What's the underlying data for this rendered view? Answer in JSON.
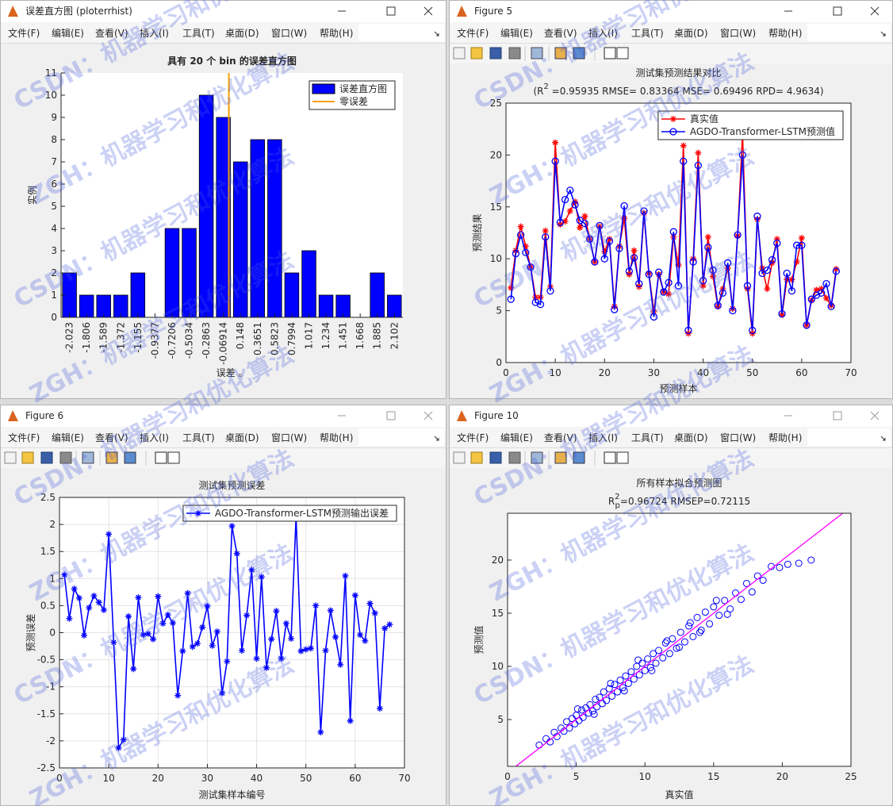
{
  "windows": [
    {
      "title": "误差直方图 (ploterrhist)"
    },
    {
      "title": "Figure 5"
    },
    {
      "title": "Figure 6"
    },
    {
      "title": "Figure 10"
    }
  ],
  "menu": [
    "文件(F)",
    "编辑(E)",
    "查看(V)",
    "插入(I)",
    "工具(T)",
    "桌面(D)",
    "窗口(W)",
    "帮助(H)"
  ],
  "watermarks": [
    "ZGH：机器学习和优化算法",
    "CSDN：机器学习和优化算法"
  ],
  "chart_data": [
    {
      "type": "bar",
      "title": "具有 20 个 bin 的误差直方图",
      "xlabel": "误差 。",
      "ylabel": "实例",
      "legend_name": "误差直方图",
      "color": "#0000ff",
      "box": false,
      "legend": "northeast",
      "xtick_rotation": 90,
      "x": [
        -2.023,
        -1.806,
        -1.589,
        -1.372,
        -1.155,
        -0.9377,
        -0.7206,
        -0.5034,
        -0.2863,
        -0.06914,
        0.148,
        0.3651,
        0.5823,
        0.7994,
        1.017,
        1.234,
        1.451,
        1.668,
        1.885,
        2.102
      ],
      "values": [
        2,
        1,
        1,
        1,
        2,
        0,
        4,
        4,
        10,
        9,
        7,
        8,
        8,
        2,
        3,
        1,
        1,
        0,
        2,
        1
      ],
      "reference_line": {
        "name": "零误差",
        "x": 0,
        "color": "#f5a000"
      },
      "xlim": [
        -2.13,
        2.21
      ],
      "xticks": [
        -2.023,
        -1.806,
        -1.589,
        -1.372,
        -1.155,
        -0.9377,
        -0.7206,
        -0.5034,
        -0.2863,
        -0.06914,
        0.148,
        0.3651,
        0.5823,
        0.7994,
        1.017,
        1.234,
        1.451,
        1.668,
        1.885,
        2.102
      ],
      "ylim": [
        0,
        11
      ],
      "yticks": [
        0,
        1,
        2,
        3,
        4,
        5,
        6,
        7,
        8,
        9,
        10,
        11
      ],
      "grid": false
    },
    {
      "type": "line",
      "title": "测试集预测结果对比",
      "subtitle": {
        "base": "(R",
        "sup": "2",
        "rest": " =0.95935 RMSE= 0.83364 MSE= 0.69496 RPD= 4.9634)"
      },
      "xlabel": "预测样本",
      "ylabel": "预测结果",
      "box": true,
      "legend": "northeast",
      "grid": false,
      "x": [
        1,
        2,
        3,
        4,
        5,
        6,
        7,
        8,
        9,
        10,
        11,
        12,
        13,
        14,
        15,
        16,
        17,
        18,
        19,
        20,
        21,
        22,
        23,
        24,
        25,
        26,
        27,
        28,
        29,
        30,
        31,
        32,
        33,
        34,
        35,
        36,
        37,
        38,
        39,
        40,
        41,
        42,
        43,
        44,
        45,
        46,
        47,
        48,
        49,
        50,
        51,
        52,
        53,
        54,
        55,
        56,
        57,
        58,
        59,
        60,
        61,
        62,
        63,
        64,
        65,
        66,
        67
      ],
      "series": [
        {
          "name": "真实值",
          "color": "#ff0000",
          "marker": "*",
          "values": [
            7.2,
            10.8,
            13.1,
            11.2,
            9.2,
            6.3,
            6.3,
            12.7,
            7.3,
            21.2,
            13.3,
            13.6,
            14.6,
            15.5,
            13.0,
            14.1,
            11.9,
            9.7,
            13.1,
            10.7,
            11.9,
            5.4,
            11.2,
            13.9,
            8.5,
            10.8,
            7.3,
            14.4,
            8.6,
            4.9,
            8.5,
            6.8,
            6.6,
            12.1,
            9.4,
            20.9,
            2.8,
            10.0,
            20.2,
            7.4,
            12.1,
            8.3,
            5.4,
            7.1,
            9.1,
            5.2,
            12.2,
            22.1,
            7.1,
            2.8,
            13.8,
            9.1,
            7.1,
            9.6,
            11.9,
            4.6,
            8.0,
            8.0,
            9.7,
            12.0,
            3.6,
            6.0,
            7.0,
            7.1,
            6.2,
            5.5,
            9.0
          ]
        },
        {
          "name": "AGDO-Transformer-LSTM预测值",
          "color": "#0000ff",
          "marker": "o",
          "values": [
            6.1,
            10.5,
            12.3,
            10.6,
            9.2,
            5.8,
            5.6,
            12.1,
            6.9,
            19.4,
            13.5,
            15.7,
            16.6,
            15.2,
            13.7,
            13.4,
            11.9,
            9.7,
            13.2,
            10.0,
            11.7,
            5.1,
            11.0,
            15.1,
            8.8,
            10.1,
            7.6,
            14.6,
            8.5,
            4.4,
            8.7,
            6.8,
            7.7,
            12.6,
            7.4,
            19.4,
            3.1,
            9.7,
            19.0,
            7.9,
            11.1,
            8.9,
            5.5,
            6.7,
            9.6,
            5.0,
            12.3,
            20.0,
            7.4,
            3.1,
            14.1,
            8.6,
            8.9,
            9.9,
            11.5,
            4.7,
            8.6,
            6.9,
            11.3,
            11.3,
            3.6,
            6.1,
            6.5,
            6.7,
            7.6,
            5.4,
            8.8
          ]
        }
      ],
      "xlim": [
        0,
        70
      ],
      "xticks": [
        0,
        10,
        20,
        30,
        40,
        50,
        60,
        70
      ],
      "ylim": [
        0,
        25
      ],
      "yticks": [
        0,
        5,
        10,
        15,
        20,
        25
      ]
    },
    {
      "type": "line",
      "title": "测试集预测误差",
      "xlabel": "测试集样本编号",
      "ylabel": "预测误差",
      "box": true,
      "legend": "northeast",
      "grid": true,
      "x": [
        1,
        2,
        3,
        4,
        5,
        6,
        7,
        8,
        9,
        10,
        11,
        12,
        13,
        14,
        15,
        16,
        17,
        18,
        19,
        20,
        21,
        22,
        23,
        24,
        25,
        26,
        27,
        28,
        29,
        30,
        31,
        32,
        33,
        34,
        35,
        36,
        37,
        38,
        39,
        40,
        41,
        42,
        43,
        44,
        45,
        46,
        47,
        48,
        49,
        50,
        51,
        52,
        53,
        54,
        55,
        56,
        57,
        58,
        59,
        60,
        61,
        62,
        63,
        64,
        65,
        66,
        67
      ],
      "series": [
        {
          "name": "AGDO-Transformer-LSTM预测输出误差",
          "color": "#0000ff",
          "marker": "*",
          "values": [
            1.07,
            0.26,
            0.81,
            0.64,
            -0.05,
            0.46,
            0.68,
            0.56,
            0.42,
            1.82,
            -0.18,
            -2.13,
            -1.98,
            0.3,
            -0.67,
            0.65,
            -0.04,
            -0.02,
            -0.12,
            0.67,
            0.17,
            0.33,
            0.18,
            -1.16,
            -0.34,
            0.73,
            -0.26,
            -0.2,
            0.1,
            0.49,
            -0.24,
            0.02,
            -1.12,
            -0.53,
            1.97,
            1.46,
            -0.33,
            0.32,
            1.16,
            -0.48,
            1.03,
            -0.65,
            -0.12,
            0.4,
            -0.48,
            0.17,
            -0.11,
            2.14,
            -0.34,
            -0.31,
            -0.29,
            0.5,
            -1.84,
            -0.33,
            0.41,
            -0.08,
            -0.59,
            1.05,
            -1.63,
            0.69,
            -0.04,
            -0.15,
            0.54,
            0.36,
            -1.4,
            0.08,
            0.15
          ]
        }
      ],
      "xlim": [
        0,
        70
      ],
      "xticks": [
        0,
        10,
        20,
        30,
        40,
        50,
        60,
        70
      ],
      "ylim": [
        -2.5,
        2.5
      ],
      "yticks": [
        -2.5,
        -2,
        -1.5,
        -1,
        -0.5,
        0,
        0.5,
        1,
        1.5,
        2,
        2.5
      ]
    },
    {
      "type": "scatter",
      "title": "所有样本拟合预测图",
      "subtitle": {
        "base": "R",
        "sup": "2",
        "sub": "p",
        "rest": "=0.96724  RMSEP=0.72115"
      },
      "xlabel": "真实值",
      "ylabel": "预测值",
      "box": true,
      "grid": false,
      "color": "#0000ff",
      "x": [
        2.3,
        2.8,
        3.1,
        3.4,
        3.6,
        3.9,
        4.1,
        4.3,
        4.5,
        4.7,
        4.9,
        5.0,
        5.2,
        5.4,
        5.5,
        5.7,
        5.9,
        6.0,
        6.2,
        6.4,
        6.5,
        6.7,
        6.9,
        7.0,
        7.2,
        7.4,
        7.6,
        7.8,
        8.0,
        8.2,
        8.4,
        8.6,
        8.8,
        9.0,
        9.2,
        9.4,
        9.6,
        9.8,
        10.0,
        10.2,
        10.4,
        10.6,
        10.8,
        11.0,
        11.3,
        11.5,
        11.8,
        12.0,
        12.3,
        12.6,
        12.9,
        13.2,
        13.5,
        13.8,
        14.1,
        14.4,
        14.7,
        15.0,
        15.4,
        15.8,
        16.2,
        16.6,
        17.0,
        17.4,
        17.8,
        18.2,
        18.6,
        19.2,
        19.8,
        20.4,
        21.2,
        22.1,
        5.1,
        6.3,
        7.5,
        8.5,
        9.5,
        10.5,
        11.6,
        12.5,
        13.3,
        14.0,
        15.2,
        16.0
      ],
      "values": [
        2.6,
        3.2,
        2.9,
        3.8,
        3.4,
        4.2,
        3.9,
        4.8,
        4.2,
        5.1,
        4.6,
        5.4,
        4.9,
        5.9,
        5.2,
        6.1,
        5.6,
        6.4,
        5.8,
        6.9,
        6.2,
        7.1,
        6.5,
        7.6,
        6.8,
        7.9,
        7.2,
        8.3,
        7.6,
        8.7,
        8.0,
        9.1,
        8.4,
        9.5,
        8.8,
        10.0,
        9.2,
        10.3,
        9.6,
        10.7,
        9.9,
        11.2,
        10.3,
        11.5,
        10.8,
        12.2,
        11.2,
        12.6,
        11.7,
        13.2,
        12.3,
        13.8,
        12.8,
        14.6,
        13.4,
        15.1,
        14.0,
        15.6,
        14.8,
        16.2,
        15.4,
        16.9,
        16.3,
        17.8,
        17.0,
        18.5,
        18.1,
        19.4,
        19.3,
        19.6,
        19.7,
        20.0,
        6.0,
        5.5,
        8.4,
        7.7,
        10.6,
        9.6,
        12.4,
        11.8,
        14.1,
        13.2,
        16.2,
        14.9
      ],
      "fit_line": {
        "x": [
          0,
          25
        ],
        "y": [
          0,
          25
        ],
        "color": "#ff00ff"
      },
      "xlim": [
        0,
        25
      ],
      "xticks": [
        0,
        5,
        10,
        15,
        20,
        25
      ],
      "ylim": [
        0.6,
        24.4
      ],
      "yticks": [
        5,
        10,
        15,
        20
      ]
    }
  ]
}
